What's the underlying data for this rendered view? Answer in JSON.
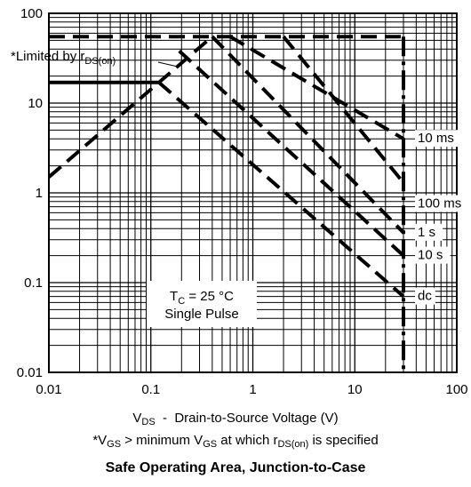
{
  "chart_data": {
    "type": "line",
    "title": "Safe Operating Area, Junction-to-Case",
    "xscale": "log",
    "yscale": "log",
    "xlim": [
      0.01,
      100
    ],
    "ylim": [
      0.01,
      100
    ],
    "grid": true,
    "xticks": [
      "0.01",
      "0.1",
      "1",
      "10",
      "100"
    ],
    "yticks": [
      "0.01",
      "0.1",
      "1",
      "10",
      "100"
    ],
    "xlabel": {
      "v": "V",
      "sub": "DS",
      "rest": "  -  Drain-to-Source Voltage (V)"
    },
    "footnote": {
      "p1": "*V",
      "s1": "GS",
      "p2": " > minimum V",
      "s2": "GS",
      "p3": " at which r",
      "s3": "DS(on)",
      "p4": " is specified"
    },
    "limit_annotation": {
      "text": "*Limited by r",
      "sub": "DS(on)"
    },
    "condition_box": {
      "line1": "T",
      "line1_sub": "C",
      "line1_rest": " = 25 °C",
      "line2": "Single Pulse"
    },
    "rdson_limit": {
      "x": [
        0.01,
        0.4
      ],
      "y": [
        1.5,
        55
      ]
    },
    "current_limits": [
      {
        "x": [
          0.01,
          0.12
        ],
        "y": [
          17,
          17
        ]
      },
      {
        "x": [
          0.01,
          30
        ],
        "y": [
          55,
          55
        ]
      }
    ],
    "voltage_limit": {
      "x": 30,
      "y": [
        0.01,
        55
      ]
    },
    "series": [
      {
        "name": "10 ms",
        "x": [
          0.6,
          30
        ],
        "y": [
          55,
          4.0
        ]
      },
      {
        "name": "100 ms",
        "x": [
          2.0,
          30
        ],
        "y": [
          55,
          1.3
        ]
      },
      {
        "name": "1 s",
        "x": [
          0.4,
          30
        ],
        "y": [
          55,
          0.36
        ]
      },
      {
        "name": "10 s",
        "x": [
          0.19,
          30
        ],
        "y": [
          38,
          0.2
        ]
      },
      {
        "name": "dc",
        "x": [
          0.12,
          30
        ],
        "y": [
          17,
          0.07
        ]
      }
    ]
  }
}
